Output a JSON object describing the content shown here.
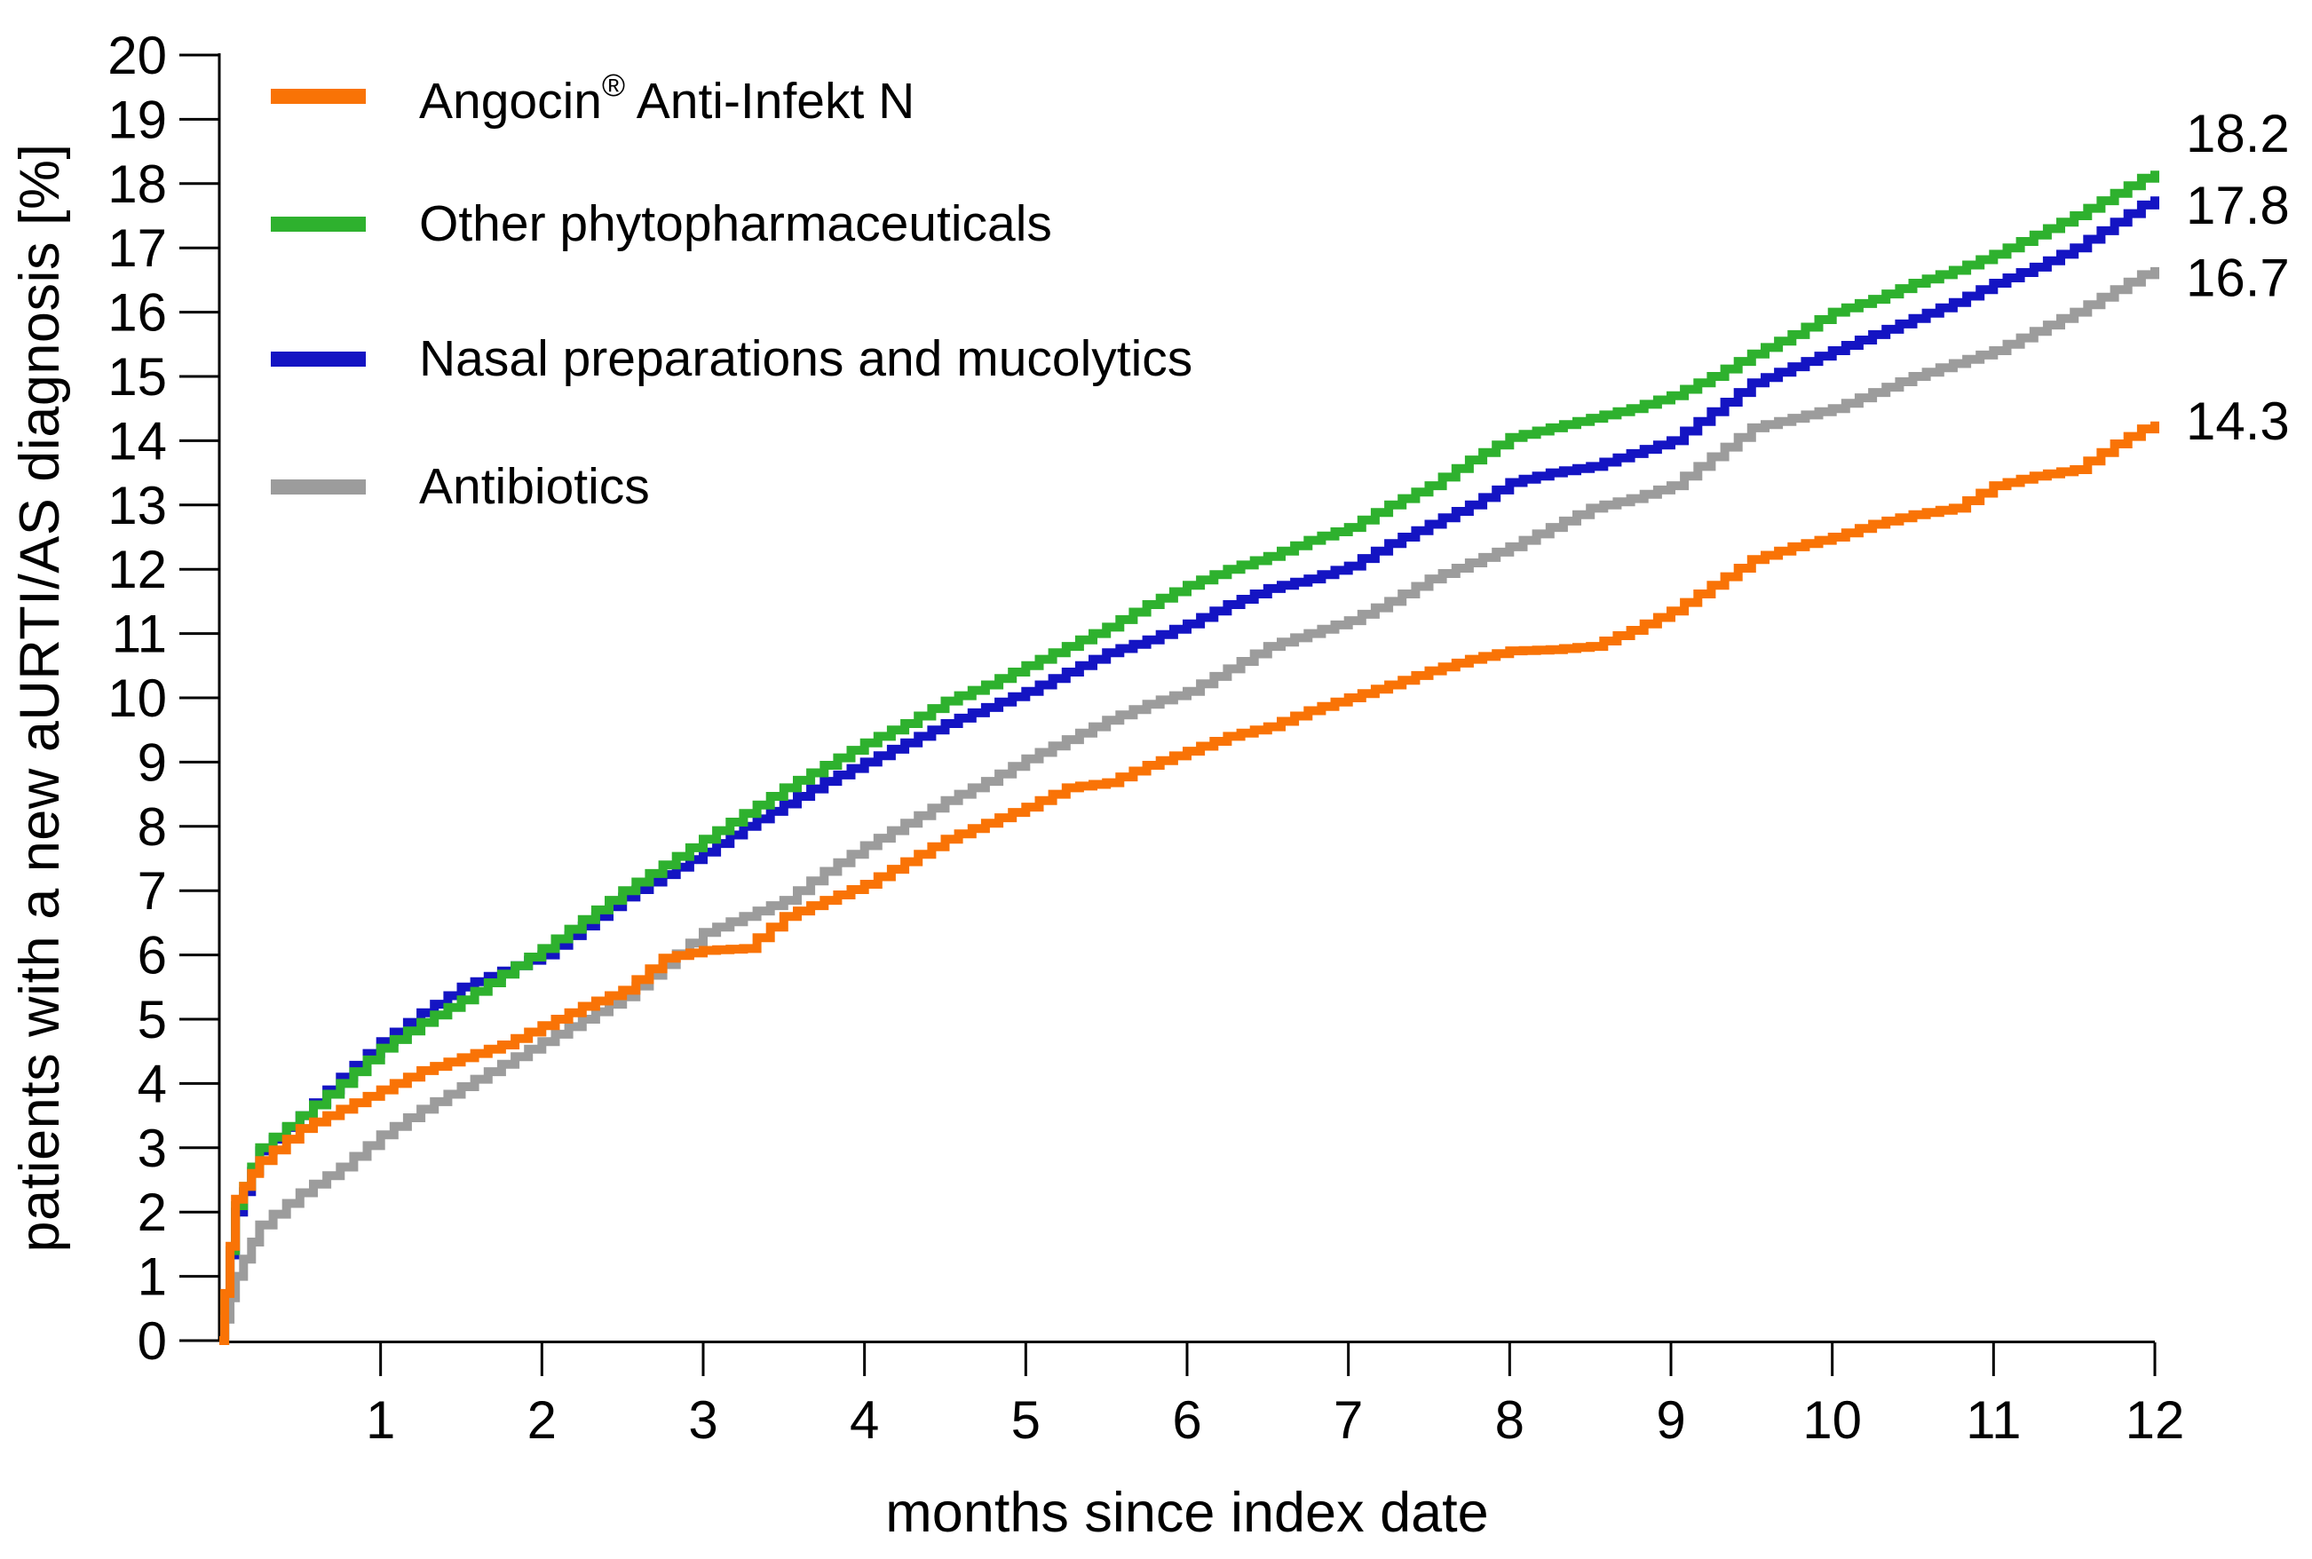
{
  "figure": {
    "background": "#ffffff",
    "text_color": "#000000"
  },
  "legend": {
    "angocin_brand": "Angocin",
    "angocin_reg": "®",
    "angocin_rest": " Anti-Infekt N"
  },
  "chart_data": {
    "type": "line",
    "subtype": "cumulative-incidence-step-curves",
    "title": "",
    "x_label": "months since index date",
    "y_label": "patients with a new aURTI/AS diagnosis [%]",
    "x_range": [
      0,
      12
    ],
    "y_range": [
      0,
      20
    ],
    "x_ticks": [
      1,
      2,
      3,
      4,
      5,
      6,
      7,
      8,
      9,
      10,
      11,
      12
    ],
    "y_ticks": [
      0,
      1,
      2,
      3,
      4,
      5,
      6,
      7,
      8,
      9,
      10,
      11,
      12,
      13,
      14,
      15,
      16,
      17,
      18,
      19,
      20
    ],
    "grid": false,
    "legend_position": "top-left",
    "x": [
      0,
      0.1,
      0.25,
      0.5,
      0.75,
      1,
      1.25,
      1.5,
      1.75,
      2,
      2.25,
      2.5,
      2.75,
      3,
      3.25,
      3.5,
      3.75,
      4,
      4.25,
      4.5,
      4.75,
      5,
      5.25,
      5.5,
      5.75,
      6,
      6.25,
      6.5,
      6.75,
      7,
      7.25,
      7.5,
      7.75,
      8,
      8.25,
      8.5,
      8.75,
      9,
      9.25,
      9.5,
      9.75,
      10,
      10.25,
      10.5,
      10.75,
      11,
      11.25,
      11.5,
      11.75,
      12
    ],
    "series": [
      {
        "name": "Angocin® Anti-Infekt N",
        "color": "#F97306",
        "end_label": "14.3",
        "end_label_dy": 0,
        "values": [
          0,
          2.2,
          2.8,
          3.3,
          3.6,
          3.9,
          4.2,
          4.4,
          4.6,
          4.9,
          5.2,
          5.45,
          5.95,
          6.07,
          6.1,
          6.6,
          6.85,
          7.1,
          7.45,
          7.8,
          8.05,
          8.3,
          8.6,
          8.68,
          8.95,
          9.17,
          9.4,
          9.55,
          9.8,
          10.0,
          10.2,
          10.42,
          10.6,
          10.73,
          10.75,
          10.8,
          11.05,
          11.35,
          11.75,
          12.15,
          12.35,
          12.5,
          12.7,
          12.85,
          12.95,
          13.3,
          13.45,
          13.55,
          13.95,
          14.3
        ]
      },
      {
        "name": "Other phytopharmaceuticals",
        "color": "#2EB12E",
        "end_label": "18.2",
        "end_label_dy": -42,
        "values": [
          0,
          2.1,
          3.0,
          3.5,
          4.0,
          4.55,
          4.95,
          5.3,
          5.7,
          6.1,
          6.55,
          7.0,
          7.4,
          7.8,
          8.2,
          8.6,
          8.95,
          9.3,
          9.6,
          9.95,
          10.2,
          10.5,
          10.8,
          11.1,
          11.45,
          11.75,
          12.0,
          12.2,
          12.45,
          12.65,
          13.0,
          13.3,
          13.7,
          14.05,
          14.2,
          14.35,
          14.5,
          14.7,
          15.0,
          15.35,
          15.65,
          16.0,
          16.2,
          16.45,
          16.65,
          16.9,
          17.2,
          17.5,
          17.85,
          18.2
        ]
      },
      {
        "name": "Nasal preparations and mucolytics",
        "color": "#1414C3",
        "end_label": "17.8",
        "end_label_dy": 10,
        "values": [
          0,
          2.0,
          2.95,
          3.5,
          4.1,
          4.65,
          5.1,
          5.5,
          5.75,
          6.0,
          6.45,
          6.9,
          7.25,
          7.6,
          8.0,
          8.35,
          8.7,
          9.0,
          9.3,
          9.6,
          9.85,
          10.1,
          10.4,
          10.7,
          10.9,
          11.15,
          11.45,
          11.7,
          11.85,
          12.05,
          12.4,
          12.7,
          13.0,
          13.35,
          13.5,
          13.6,
          13.8,
          14.0,
          14.45,
          14.9,
          15.15,
          15.4,
          15.65,
          15.9,
          16.15,
          16.45,
          16.7,
          17.0,
          17.4,
          17.8
        ]
      },
      {
        "name": "Antibiotics",
        "color": "#9C9C9C",
        "end_label": "16.7",
        "end_label_dy": 12,
        "values": [
          0,
          1.0,
          1.8,
          2.3,
          2.7,
          3.2,
          3.6,
          3.95,
          4.3,
          4.65,
          5.0,
          5.35,
          5.85,
          6.35,
          6.6,
          6.85,
          7.3,
          7.7,
          8.05,
          8.4,
          8.7,
          9.05,
          9.35,
          9.65,
          9.9,
          10.1,
          10.45,
          10.8,
          11.0,
          11.2,
          11.5,
          11.85,
          12.1,
          12.35,
          12.65,
          12.95,
          13.1,
          13.3,
          13.75,
          14.2,
          14.35,
          14.5,
          14.75,
          15.0,
          15.2,
          15.4,
          15.7,
          16.0,
          16.35,
          16.7
        ]
      }
    ]
  }
}
